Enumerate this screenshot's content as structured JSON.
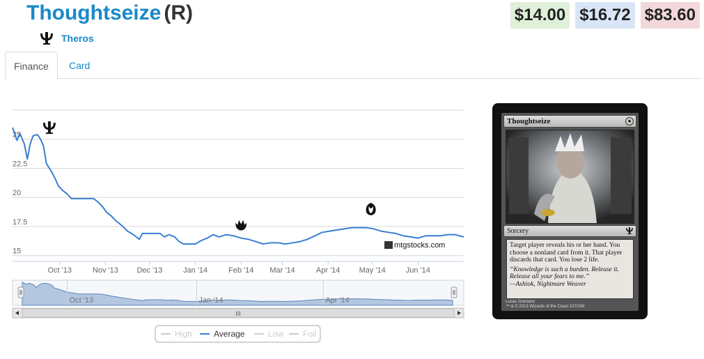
{
  "card": {
    "name": "Thoughtseize",
    "rarity": "(R)",
    "set_name": "Theros"
  },
  "prices": {
    "low": "$14.00",
    "average": "$16.72",
    "high": "$83.60",
    "colors": {
      "low": "#dff0d8",
      "average": "#d9e6f7",
      "high": "#f2d8da"
    }
  },
  "tabs": [
    {
      "label": "Finance",
      "active": true
    },
    {
      "label": "Card",
      "active": false
    }
  ],
  "chart_data": {
    "type": "line",
    "y_ticks": [
      "25",
      "22.5",
      "20",
      "17.5",
      "15"
    ],
    "ylim": [
      14.5,
      27.5
    ],
    "x_ticks": [
      "Oct '13",
      "Nov '13",
      "Dec '13",
      "Jan '14",
      "Feb '14",
      "Mar '14",
      "Apr '14",
      "May '14",
      "Jun '14"
    ],
    "x_tick_days": [
      32,
      63,
      93,
      124,
      155,
      183,
      214,
      244,
      275
    ],
    "x_range_days": [
      0,
      306
    ],
    "series": [
      {
        "name": "Average",
        "color": "#3a7fd1",
        "points": [
          [
            0,
            26.0
          ],
          [
            3,
            24.9
          ],
          [
            5,
            25.5
          ],
          [
            8,
            24.6
          ],
          [
            10,
            23.3
          ],
          [
            12,
            24.6
          ],
          [
            14,
            25.3
          ],
          [
            17,
            25.4
          ],
          [
            19,
            25.0
          ],
          [
            21,
            24.4
          ],
          [
            23,
            22.9
          ],
          [
            26,
            22.3
          ],
          [
            29,
            21.6
          ],
          [
            31,
            21.0
          ],
          [
            34,
            20.6
          ],
          [
            37,
            20.3
          ],
          [
            40,
            19.9
          ],
          [
            45,
            19.9
          ],
          [
            50,
            19.9
          ],
          [
            55,
            19.9
          ],
          [
            58,
            19.6
          ],
          [
            61,
            19.2
          ],
          [
            64,
            18.7
          ],
          [
            67,
            18.4
          ],
          [
            70,
            18.0
          ],
          [
            74,
            17.6
          ],
          [
            78,
            17.1
          ],
          [
            82,
            16.8
          ],
          [
            86,
            16.4
          ],
          [
            88,
            16.9
          ],
          [
            92,
            16.9
          ],
          [
            96,
            16.9
          ],
          [
            100,
            16.9
          ],
          [
            103,
            16.6
          ],
          [
            106,
            16.8
          ],
          [
            110,
            16.6
          ],
          [
            113,
            16.2
          ],
          [
            116,
            16.0
          ],
          [
            120,
            16.0
          ],
          [
            124,
            16.0
          ],
          [
            128,
            16.3
          ],
          [
            132,
            16.5
          ],
          [
            136,
            16.8
          ],
          [
            140,
            16.6
          ],
          [
            145,
            16.8
          ],
          [
            150,
            16.7
          ],
          [
            155,
            16.5
          ],
          [
            160,
            16.4
          ],
          [
            165,
            16.2
          ],
          [
            170,
            16.0
          ],
          [
            175,
            16.1
          ],
          [
            180,
            16.1
          ],
          [
            185,
            16.0
          ],
          [
            190,
            16.1
          ],
          [
            195,
            16.2
          ],
          [
            200,
            16.4
          ],
          [
            205,
            16.7
          ],
          [
            210,
            17.0
          ],
          [
            215,
            17.1
          ],
          [
            220,
            17.2
          ],
          [
            225,
            17.3
          ],
          [
            230,
            17.4
          ],
          [
            235,
            17.4
          ],
          [
            240,
            17.4
          ],
          [
            245,
            17.3
          ],
          [
            250,
            17.1
          ],
          [
            255,
            17.0
          ],
          [
            260,
            16.9
          ],
          [
            265,
            16.7
          ],
          [
            270,
            16.6
          ],
          [
            275,
            16.5
          ],
          [
            280,
            16.7
          ],
          [
            285,
            16.7
          ],
          [
            290,
            16.7
          ],
          [
            295,
            16.8
          ],
          [
            300,
            16.8
          ],
          [
            306,
            16.6
          ]
        ]
      }
    ],
    "set_release_markers": [
      {
        "day": 25,
        "value": 25.4,
        "icon": "theros-set-icon"
      },
      {
        "day": 155,
        "value": 17.1,
        "icon": "born-of-the-gods-set-icon"
      },
      {
        "day": 243,
        "value": 18.4,
        "icon": "journey-into-nyx-set-icon"
      }
    ],
    "watermark": "mtgstocks.com",
    "navigator_ticks": [
      "Oct '13",
      "Jan '14",
      "Apr '14"
    ],
    "navigator_tick_days": [
      32,
      124,
      214
    ],
    "scroll_grip": "III",
    "legend": [
      {
        "label": "High",
        "enabled": false
      },
      {
        "label": "Average",
        "enabled": true
      },
      {
        "label": "Low",
        "enabled": false
      },
      {
        "label": "Foil",
        "enabled": false
      }
    ]
  },
  "card_image": {
    "title": "Thoughtseize",
    "mana_symbol": "B",
    "type_line": "Sorcery",
    "rules_text": "Target player reveals his or her hand. You choose a nonland card from it. That player discards that card. You lose 2 life.",
    "flavor_text": "“Knowledge is such a burden. Release it. Release all your fears to me.”\n—Ashiok, Nightmare Weaver",
    "artist": "Lucas Graciano",
    "copyright": "™ & © 2013 Wizards of the Coast 107/249"
  }
}
